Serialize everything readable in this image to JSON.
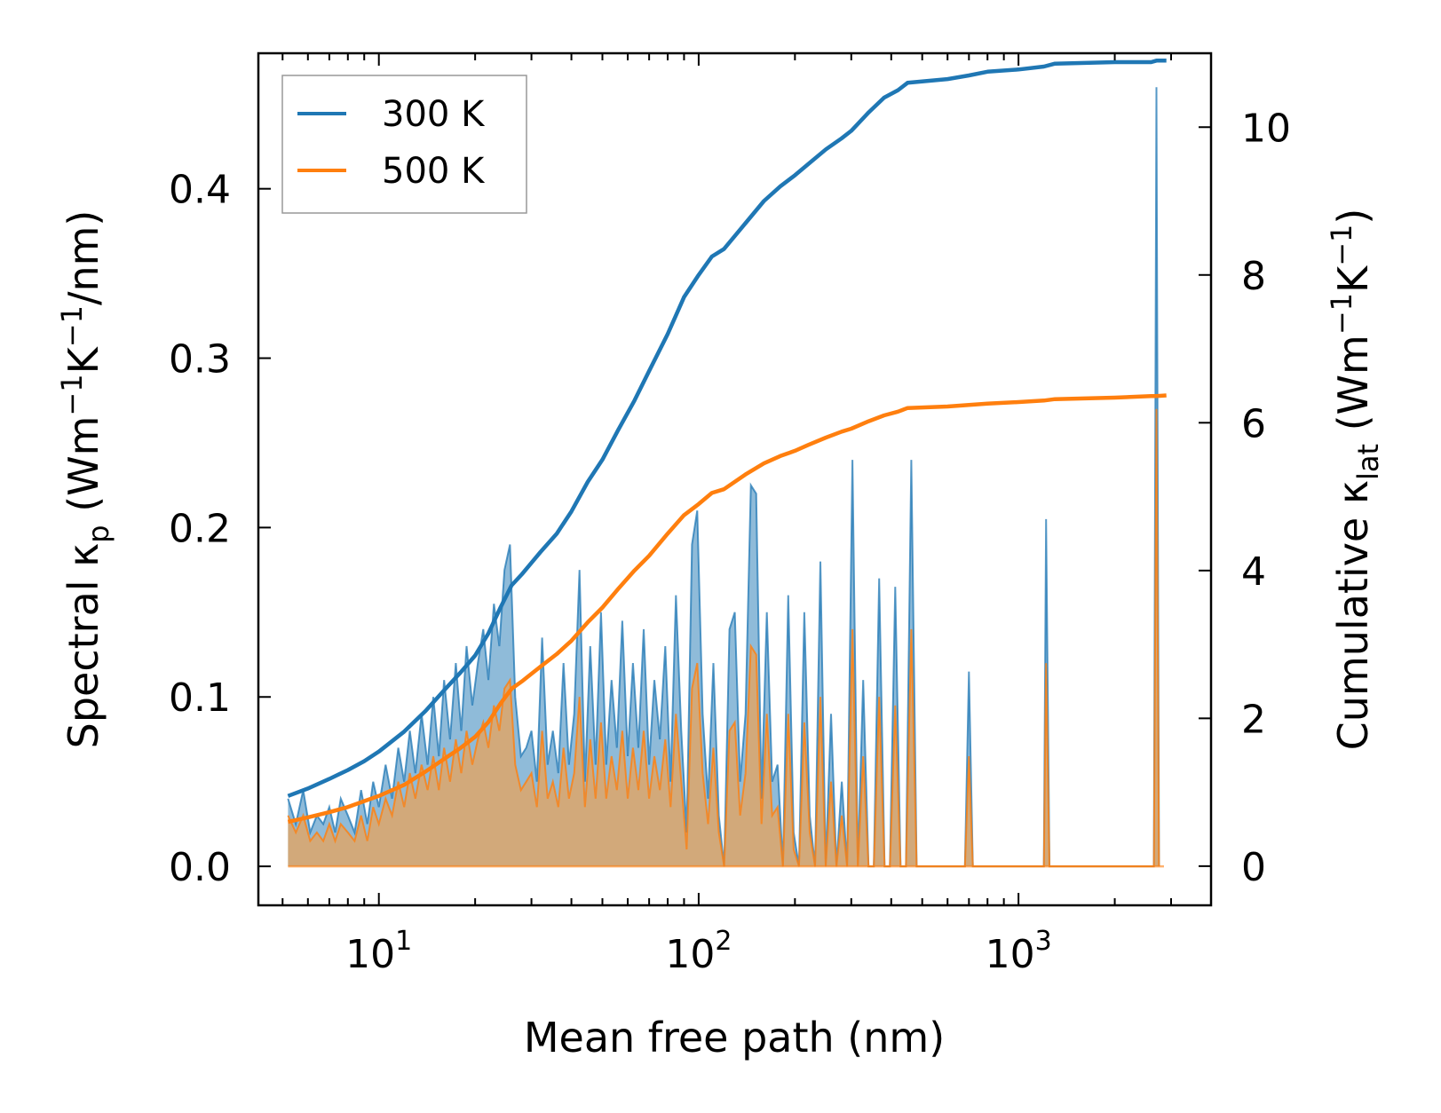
{
  "chart_data": {
    "type": "line",
    "x_scale": "log",
    "xlabel": "Mean free path (nm)",
    "ylabel_left": {
      "text": "Spectral κ",
      "sub": "p",
      "units_pre": " (Wm",
      "sup1": "−1",
      "units_mid": "K",
      "sup2": "−1",
      "units_post": "/nm)"
    },
    "ylabel_right": {
      "text": "Cumulative κ",
      "sub": "lat",
      "units_pre": " (Wm",
      "sup1": "−1",
      "units_mid": "K",
      "sup2": "−1",
      "units_post": ")"
    },
    "xlim": [
      4.2,
      4000
    ],
    "ylim_left": [
      -0.023,
      0.48
    ],
    "ylim_right": [
      -0.53,
      11.0
    ],
    "x_ticks": [
      {
        "value": 10,
        "base": "10",
        "exp": "1"
      },
      {
        "value": 100,
        "base": "10",
        "exp": "2"
      },
      {
        "value": 1000,
        "base": "10",
        "exp": "3"
      }
    ],
    "y_ticks_left": [
      "0.0",
      "0.1",
      "0.2",
      "0.3",
      "0.4"
    ],
    "y_ticks_left_values": [
      0.0,
      0.1,
      0.2,
      0.3,
      0.4
    ],
    "y_ticks_right": [
      "0",
      "2",
      "4",
      "6",
      "8",
      "10"
    ],
    "y_ticks_right_values": [
      0,
      2,
      4,
      6,
      8,
      10
    ],
    "legend": [
      "300 K",
      "500 K"
    ],
    "colors": {
      "s300": "#1f77b4",
      "s500": "#ff7f0e",
      "fill300": "#1f77b4",
      "fill500": "#e8a35a"
    },
    "spectral": {
      "x": [
        5.2,
        5.5,
        5.8,
        6.1,
        6.4,
        6.7,
        7.0,
        7.3,
        7.6,
        8.0,
        8.4,
        8.8,
        9.2,
        9.6,
        10.0,
        10.5,
        11.0,
        11.5,
        12.0,
        12.5,
        13.0,
        13.6,
        14.2,
        14.8,
        15.4,
        16.0,
        16.7,
        17.4,
        18.1,
        18.8,
        19.6,
        20.4,
        21.2,
        22.0,
        22.9,
        23.8,
        24.7,
        25.7,
        26.7,
        27.8,
        28.9,
        30.0,
        31.2,
        32.4,
        33.7,
        35.0,
        36.4,
        37.8,
        39.3,
        40.8,
        42.4,
        44.1,
        45.8,
        47.6,
        49.5,
        51.4,
        53.4,
        55.5,
        57.7,
        60.0,
        62.3,
        64.8,
        67.3,
        70.0,
        72.7,
        75.6,
        78.6,
        81.7,
        84.9,
        88.2,
        91.7,
        95.3,
        99.0,
        102.9,
        107.0,
        111.2,
        115.6,
        120.1,
        124.8,
        129.7,
        134.8,
        140.1,
        145.6,
        151.3,
        157.2,
        163.4,
        169.8,
        176.5,
        183.4,
        190.6,
        198.1,
        205.9,
        214.0,
        222.4,
        231.1,
        240.2,
        249.6,
        259.4,
        269.6,
        280.2,
        291.2,
        302.6,
        314.5,
        326.8,
        339.6,
        352.9,
        366.8,
        381.2,
        396.2,
        411.7,
        427.9,
        444.7,
        462.2,
        480.3,
        499.2,
        520,
        560,
        620,
        660,
        680,
        700,
        720,
        750,
        1000,
        1150,
        1200,
        1220,
        1250,
        1300,
        2500,
        2650,
        2700,
        2750,
        2800,
        2850
      ],
      "v300": [
        0.04,
        0.025,
        0.045,
        0.02,
        0.03,
        0.025,
        0.035,
        0.02,
        0.04,
        0.03,
        0.02,
        0.045,
        0.025,
        0.05,
        0.035,
        0.06,
        0.04,
        0.07,
        0.05,
        0.08,
        0.055,
        0.09,
        0.06,
        0.1,
        0.065,
        0.11,
        0.075,
        0.12,
        0.08,
        0.13,
        0.095,
        0.12,
        0.14,
        0.11,
        0.155,
        0.13,
        0.175,
        0.19,
        0.1,
        0.065,
        0.07,
        0.08,
        0.05,
        0.135,
        0.06,
        0.08,
        0.055,
        0.12,
        0.06,
        0.09,
        0.175,
        0.05,
        0.13,
        0.06,
        0.15,
        0.06,
        0.11,
        0.07,
        0.145,
        0.065,
        0.12,
        0.07,
        0.14,
        0.06,
        0.11,
        0.075,
        0.13,
        0.05,
        0.16,
        0.08,
        0.02,
        0.19,
        0.21,
        0.09,
        0.04,
        0.12,
        0.03,
        0.0,
        0.14,
        0.15,
        0.05,
        0.09,
        0.225,
        0.22,
        0.04,
        0.15,
        0.05,
        0.06,
        0.0,
        0.16,
        0.02,
        0.0,
        0.15,
        0.03,
        0.0,
        0.18,
        0.0,
        0.09,
        0.0,
        0.05,
        0.0,
        0.24,
        0.0,
        0.11,
        0.0,
        0.0,
        0.17,
        0.0,
        0.0,
        0.165,
        0.0,
        0.0,
        0.24,
        0.0,
        0.0,
        0.0,
        0.0,
        0.0,
        0.0,
        0.0,
        0.115,
        0.0,
        0.0,
        0.0,
        0.0,
        0.0,
        0.205,
        0.0,
        0.0,
        0.0,
        0.0,
        0.46,
        0.0
      ],
      "v500": [
        0.03,
        0.02,
        0.03,
        0.015,
        0.02,
        0.015,
        0.025,
        0.015,
        0.025,
        0.02,
        0.015,
        0.03,
        0.015,
        0.035,
        0.025,
        0.04,
        0.03,
        0.05,
        0.035,
        0.055,
        0.04,
        0.06,
        0.045,
        0.065,
        0.045,
        0.07,
        0.05,
        0.075,
        0.055,
        0.08,
        0.06,
        0.075,
        0.085,
        0.07,
        0.095,
        0.08,
        0.105,
        0.11,
        0.06,
        0.045,
        0.05,
        0.055,
        0.035,
        0.08,
        0.04,
        0.05,
        0.035,
        0.07,
        0.04,
        0.055,
        0.1,
        0.035,
        0.075,
        0.04,
        0.085,
        0.04,
        0.065,
        0.045,
        0.08,
        0.04,
        0.07,
        0.045,
        0.08,
        0.04,
        0.065,
        0.045,
        0.075,
        0.035,
        0.09,
        0.05,
        0.01,
        0.105,
        0.12,
        0.055,
        0.025,
        0.07,
        0.02,
        0.0,
        0.08,
        0.085,
        0.03,
        0.055,
        0.13,
        0.125,
        0.025,
        0.09,
        0.03,
        0.035,
        0.0,
        0.09,
        0.01,
        0.0,
        0.085,
        0.02,
        0.0,
        0.1,
        0.0,
        0.05,
        0.0,
        0.03,
        0.0,
        0.14,
        0.0,
        0.065,
        0.0,
        0.0,
        0.1,
        0.0,
        0.0,
        0.095,
        0.0,
        0.0,
        0.14,
        0.0,
        0.0,
        0.0,
        0.0,
        0.0,
        0.0,
        0.0,
        0.065,
        0.0,
        0.0,
        0.0,
        0.0,
        0.0,
        0.12,
        0.0,
        0.0,
        0.0,
        0.0,
        0.27,
        0.0
      ]
    },
    "cumulative_300K": {
      "x": [
        5.2,
        6,
        7,
        8,
        9,
        10,
        12,
        14,
        16,
        18,
        20,
        22,
        24,
        26,
        28,
        32,
        36,
        40,
        45,
        50,
        56,
        63,
        70,
        80,
        90,
        100,
        110,
        120,
        140,
        160,
        180,
        200,
        220,
        250,
        280,
        300,
        340,
        380,
        420,
        450,
        600,
        700,
        800,
        1000,
        1200,
        1300,
        2000,
        2600,
        2700,
        2900
      ],
      "y": [
        0.95,
        1.05,
        1.18,
        1.3,
        1.42,
        1.55,
        1.82,
        2.1,
        2.38,
        2.62,
        2.85,
        3.15,
        3.5,
        3.8,
        3.95,
        4.25,
        4.5,
        4.8,
        5.2,
        5.5,
        5.9,
        6.3,
        6.7,
        7.2,
        7.7,
        8.0,
        8.25,
        8.35,
        8.7,
        9.0,
        9.2,
        9.35,
        9.5,
        9.7,
        9.85,
        9.95,
        10.2,
        10.4,
        10.5,
        10.6,
        10.65,
        10.7,
        10.75,
        10.78,
        10.82,
        10.86,
        10.88,
        10.88,
        10.9,
        10.9
      ]
    },
    "cumulative_500K": {
      "x": [
        5.2,
        6,
        7,
        8,
        9,
        10,
        12,
        14,
        16,
        18,
        20,
        22,
        24,
        26,
        28,
        32,
        36,
        40,
        45,
        50,
        56,
        63,
        70,
        80,
        90,
        100,
        110,
        120,
        140,
        160,
        180,
        200,
        220,
        250,
        280,
        300,
        340,
        380,
        420,
        450,
        600,
        700,
        800,
        1000,
        1200,
        1300,
        2000,
        2600,
        2700,
        2900
      ],
      "y": [
        0.6,
        0.66,
        0.73,
        0.8,
        0.88,
        0.95,
        1.1,
        1.28,
        1.45,
        1.6,
        1.75,
        1.95,
        2.2,
        2.4,
        2.5,
        2.7,
        2.87,
        3.05,
        3.3,
        3.5,
        3.75,
        4.0,
        4.2,
        4.5,
        4.75,
        4.9,
        5.05,
        5.1,
        5.3,
        5.45,
        5.55,
        5.62,
        5.7,
        5.8,
        5.88,
        5.92,
        6.02,
        6.1,
        6.15,
        6.2,
        6.22,
        6.24,
        6.26,
        6.28,
        6.3,
        6.32,
        6.34,
        6.36,
        6.36,
        6.37
      ]
    }
  }
}
